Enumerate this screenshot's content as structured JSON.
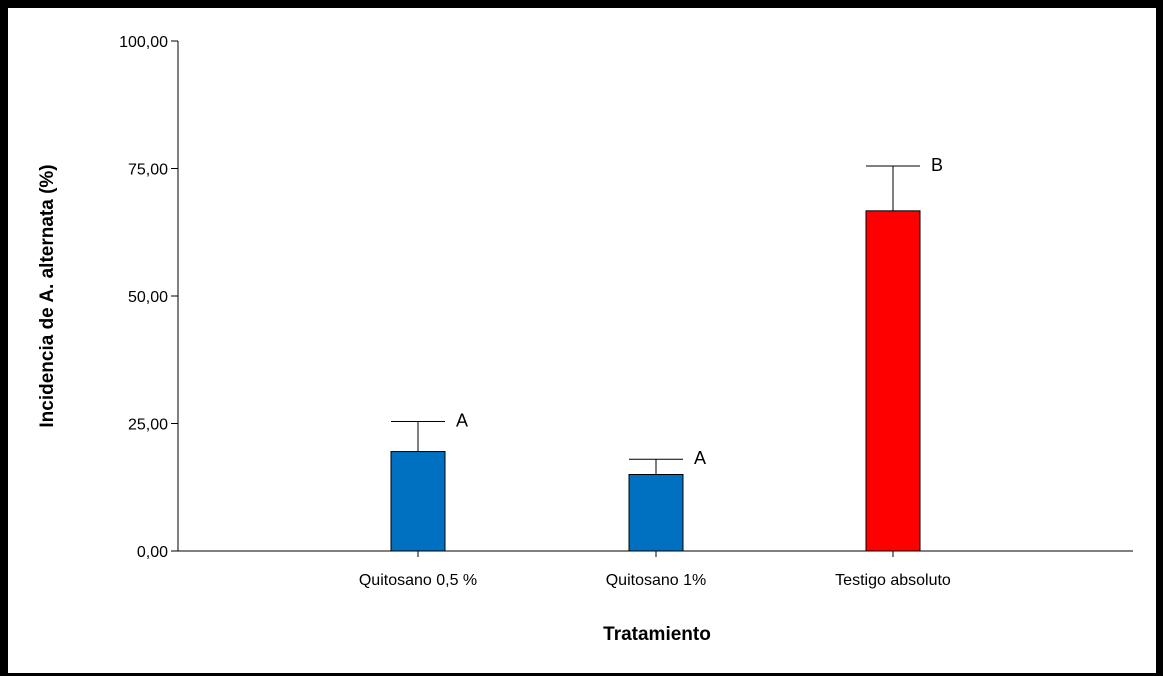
{
  "chart_data": {
    "type": "bar",
    "categories": [
      "Quitosano 0,5 %",
      "Quitosano 1%",
      "Testigo absoluto"
    ],
    "values": [
      19.5,
      15.0,
      66.7
    ],
    "error_upper": [
      25.4,
      18.0,
      75.5
    ],
    "group_letters": [
      "A",
      "A",
      "B"
    ],
    "bar_colors": [
      "#0070c0",
      "#0070c0",
      "#ff0000"
    ],
    "xlabel": "Tratamiento",
    "ylabel": "Incidencia de A. alternata (%)",
    "ylim": [
      0,
      100
    ],
    "yticks": [
      0,
      25,
      50,
      75,
      100
    ],
    "ytick_labels": [
      "0,00",
      "25,00",
      "50,00",
      "75,00",
      "100,00"
    ],
    "grid": false,
    "legend": "none"
  }
}
